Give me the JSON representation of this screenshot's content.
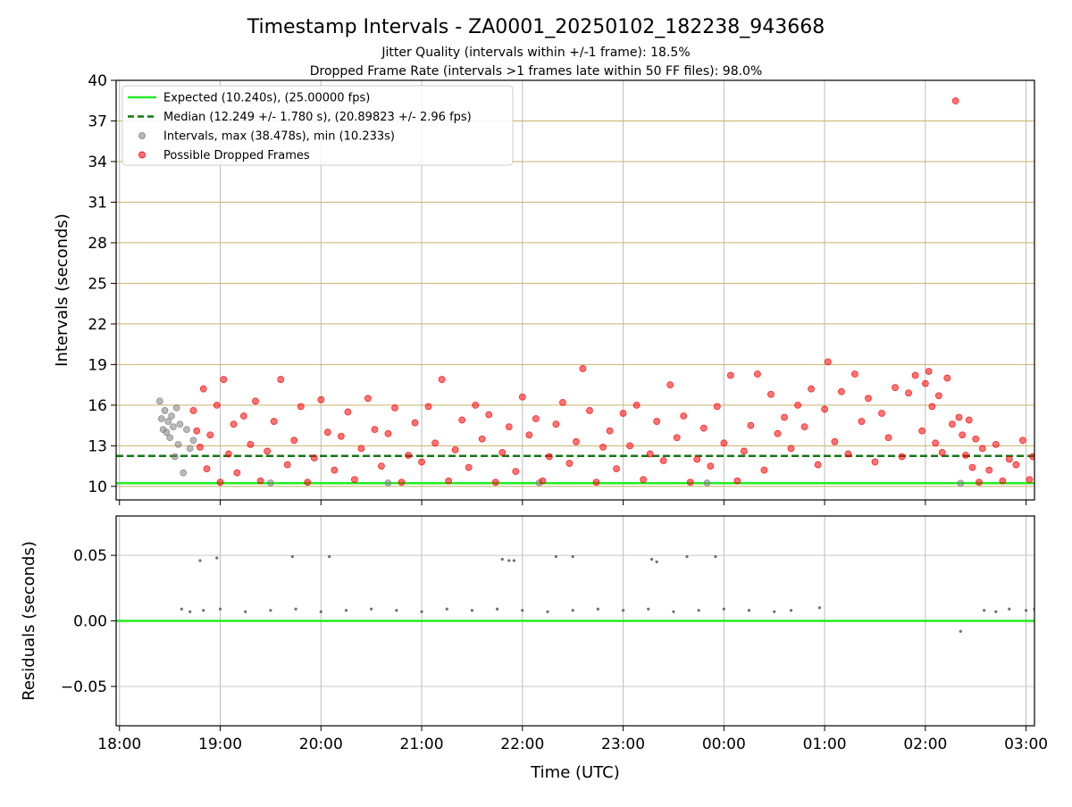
{
  "figure": {
    "title": "Timestamp Intervals - ZA0001_20250102_182238_943668",
    "subtitle_lines": [
      "Jitter Quality (intervals within +/-1 frame): 18.5%",
      "Dropped Frame Rate (intervals >1 frames late within 50 FF files): 98.0%"
    ]
  },
  "chart_data": [
    {
      "type": "scatter",
      "panel": "intervals",
      "xlabel": "",
      "ylabel": "Intervals (seconds)",
      "xlim": [
        "17:58",
        "03:05"
      ],
      "ylim": [
        9,
        40
      ],
      "yticks": [
        10,
        13,
        16,
        19,
        22,
        25,
        28,
        31,
        34,
        37,
        40
      ],
      "grid": true,
      "legend_position": "top-left",
      "reference_lines": [
        {
          "name": "Expected (10.240s), (25.00000 fps)",
          "y": 10.24,
          "color": "#22ee22",
          "style": "solid"
        },
        {
          "name": "Median (12.249 +/- 1.780 s), (20.89823 +/- 2.96 fps)",
          "y": 12.249,
          "color": "#117711",
          "style": "dashed"
        }
      ],
      "series": [
        {
          "name": "Intervals, max (38.478s), min (10.233s)",
          "color": "#808080",
          "points": [
            [
              "18:24",
              16.3
            ],
            [
              "18:25",
              15.0
            ],
            [
              "18:26",
              14.2
            ],
            [
              "18:27",
              15.6
            ],
            [
              "18:28",
              14.0
            ],
            [
              "18:29",
              14.8
            ],
            [
              "18:30",
              13.6
            ],
            [
              "18:31",
              15.2
            ],
            [
              "18:32",
              14.4
            ],
            [
              "18:33",
              12.2
            ],
            [
              "18:34",
              15.8
            ],
            [
              "18:35",
              13.1
            ],
            [
              "18:36",
              14.6
            ],
            [
              "18:38",
              11.0
            ],
            [
              "18:40",
              14.2
            ],
            [
              "18:42",
              12.8
            ],
            [
              "18:44",
              13.4
            ],
            [
              "19:30",
              10.25
            ],
            [
              "20:40",
              10.25
            ],
            [
              "22:10",
              10.26
            ],
            [
              "23:50",
              10.25
            ],
            [
              "02:21",
              10.23
            ]
          ]
        },
        {
          "name": "Possible Dropped Frames",
          "color": "#ff0000",
          "points": [
            [
              "18:44",
              15.6
            ],
            [
              "18:46",
              14.1
            ],
            [
              "18:48",
              12.9
            ],
            [
              "18:50",
              17.2
            ],
            [
              "18:52",
              11.3
            ],
            [
              "18:54",
              13.8
            ],
            [
              "18:58",
              16.0
            ],
            [
              "19:00",
              10.3
            ],
            [
              "19:02",
              17.9
            ],
            [
              "19:05",
              12.4
            ],
            [
              "19:08",
              14.6
            ],
            [
              "19:10",
              11.0
            ],
            [
              "19:14",
              15.2
            ],
            [
              "19:18",
              13.1
            ],
            [
              "19:21",
              16.3
            ],
            [
              "19:24",
              10.4
            ],
            [
              "19:28",
              12.6
            ],
            [
              "19:32",
              14.8
            ],
            [
              "19:36",
              17.9
            ],
            [
              "19:40",
              11.6
            ],
            [
              "19:44",
              13.4
            ],
            [
              "19:48",
              15.9
            ],
            [
              "19:52",
              10.3
            ],
            [
              "19:56",
              12.1
            ],
            [
              "20:00",
              16.4
            ],
            [
              "20:04",
              14.0
            ],
            [
              "20:08",
              11.2
            ],
            [
              "20:12",
              13.7
            ],
            [
              "20:16",
              15.5
            ],
            [
              "20:20",
              10.5
            ],
            [
              "20:24",
              12.8
            ],
            [
              "20:28",
              16.5
            ],
            [
              "20:32",
              14.2
            ],
            [
              "20:36",
              11.5
            ],
            [
              "20:40",
              13.9
            ],
            [
              "20:44",
              15.8
            ],
            [
              "20:48",
              10.3
            ],
            [
              "20:52",
              12.3
            ],
            [
              "20:56",
              14.7
            ],
            [
              "21:00",
              11.8
            ],
            [
              "21:04",
              15.9
            ],
            [
              "21:08",
              13.2
            ],
            [
              "21:12",
              17.9
            ],
            [
              "21:16",
              10.4
            ],
            [
              "21:20",
              12.7
            ],
            [
              "21:24",
              14.9
            ],
            [
              "21:28",
              11.4
            ],
            [
              "21:32",
              16.0
            ],
            [
              "21:36",
              13.5
            ],
            [
              "21:40",
              15.3
            ],
            [
              "21:44",
              10.3
            ],
            [
              "21:48",
              12.5
            ],
            [
              "21:52",
              14.4
            ],
            [
              "21:56",
              11.1
            ],
            [
              "22:00",
              16.6
            ],
            [
              "22:04",
              13.8
            ],
            [
              "22:08",
              15.0
            ],
            [
              "22:12",
              10.4
            ],
            [
              "22:16",
              12.2
            ],
            [
              "22:20",
              14.6
            ],
            [
              "22:24",
              16.2
            ],
            [
              "22:28",
              11.7
            ],
            [
              "22:32",
              13.3
            ],
            [
              "22:36",
              18.7
            ],
            [
              "22:40",
              15.6
            ],
            [
              "22:44",
              10.3
            ],
            [
              "22:48",
              12.9
            ],
            [
              "22:52",
              14.1
            ],
            [
              "22:56",
              11.3
            ],
            [
              "23:00",
              15.4
            ],
            [
              "23:04",
              13.0
            ],
            [
              "23:08",
              16.0
            ],
            [
              "23:12",
              10.5
            ],
            [
              "23:16",
              12.4
            ],
            [
              "23:20",
              14.8
            ],
            [
              "23:24",
              11.9
            ],
            [
              "23:28",
              17.5
            ],
            [
              "23:32",
              13.6
            ],
            [
              "23:36",
              15.2
            ],
            [
              "23:40",
              10.3
            ],
            [
              "23:44",
              12.0
            ],
            [
              "23:48",
              14.3
            ],
            [
              "23:52",
              11.5
            ],
            [
              "23:56",
              15.9
            ],
            [
              "00:00",
              13.2
            ],
            [
              "00:04",
              18.2
            ],
            [
              "00:08",
              10.4
            ],
            [
              "00:12",
              12.6
            ],
            [
              "00:16",
              14.5
            ],
            [
              "00:20",
              18.3
            ],
            [
              "00:24",
              11.2
            ],
            [
              "00:28",
              16.8
            ],
            [
              "00:32",
              13.9
            ],
            [
              "00:36",
              15.1
            ],
            [
              "00:40",
              12.8
            ],
            [
              "00:44",
              16.0
            ],
            [
              "00:48",
              14.4
            ],
            [
              "00:52",
              17.2
            ],
            [
              "00:56",
              11.6
            ],
            [
              "01:00",
              15.7
            ],
            [
              "01:02",
              19.2
            ],
            [
              "01:06",
              13.3
            ],
            [
              "01:10",
              17.0
            ],
            [
              "01:14",
              12.4
            ],
            [
              "01:18",
              18.3
            ],
            [
              "01:22",
              14.8
            ],
            [
              "01:26",
              16.5
            ],
            [
              "01:30",
              11.8
            ],
            [
              "01:34",
              15.4
            ],
            [
              "01:38",
              13.6
            ],
            [
              "01:42",
              17.3
            ],
            [
              "01:46",
              12.2
            ],
            [
              "01:50",
              16.9
            ],
            [
              "01:54",
              18.2
            ],
            [
              "01:58",
              14.1
            ],
            [
              "02:00",
              17.6
            ],
            [
              "02:02",
              18.5
            ],
            [
              "02:04",
              15.9
            ],
            [
              "02:06",
              13.2
            ],
            [
              "02:08",
              16.7
            ],
            [
              "02:10",
              12.5
            ],
            [
              "02:13",
              18.0
            ],
            [
              "02:16",
              14.6
            ],
            [
              "02:18",
              38.48
            ],
            [
              "02:20",
              15.1
            ],
            [
              "02:22",
              13.8
            ],
            [
              "02:24",
              12.3
            ],
            [
              "02:26",
              14.9
            ],
            [
              "02:28",
              11.4
            ],
            [
              "02:30",
              13.5
            ],
            [
              "02:32",
              10.3
            ],
            [
              "02:34",
              12.8
            ],
            [
              "02:38",
              11.2
            ],
            [
              "02:42",
              13.1
            ],
            [
              "02:46",
              10.4
            ],
            [
              "02:50",
              12.0
            ],
            [
              "02:54",
              11.6
            ],
            [
              "02:58",
              13.4
            ],
            [
              "03:02",
              10.5
            ],
            [
              "03:04",
              12.2
            ]
          ]
        }
      ]
    },
    {
      "type": "scatter",
      "panel": "residuals",
      "xlabel": "Time (UTC)",
      "ylabel": "Residuals (seconds)",
      "xlim": [
        "17:58",
        "03:05"
      ],
      "ylim": [
        -0.08,
        0.08
      ],
      "yticks": [
        -0.05,
        0.0,
        0.05
      ],
      "ytick_labels": [
        "−0.05",
        "0.00",
        "0.05"
      ],
      "xticks": [
        "18:00",
        "19:00",
        "20:00",
        "21:00",
        "22:00",
        "23:00",
        "00:00",
        "01:00",
        "02:00",
        "03:00"
      ],
      "grid": true,
      "reference_lines": [
        {
          "y": 0.0,
          "color": "#22ee22",
          "style": "solid"
        }
      ],
      "series": [
        {
          "color": "#707070",
          "points": [
            [
              "18:48",
              0.046
            ],
            [
              "18:58",
              0.048
            ],
            [
              "19:43",
              0.049
            ],
            [
              "20:05",
              0.049
            ],
            [
              "21:48",
              0.047
            ],
            [
              "21:52",
              0.046
            ],
            [
              "21:55",
              0.046
            ],
            [
              "22:20",
              0.049
            ],
            [
              "22:30",
              0.049
            ],
            [
              "23:17",
              0.047
            ],
            [
              "23:20",
              0.045
            ],
            [
              "23:38",
              0.049
            ],
            [
              "23:55",
              0.049
            ],
            [
              "18:37",
              0.009
            ],
            [
              "18:42",
              0.007
            ],
            [
              "18:50",
              0.008
            ],
            [
              "19:00",
              0.009
            ],
            [
              "19:15",
              0.007
            ],
            [
              "19:30",
              0.008
            ],
            [
              "19:45",
              0.009
            ],
            [
              "20:00",
              0.007
            ],
            [
              "20:15",
              0.008
            ],
            [
              "20:30",
              0.009
            ],
            [
              "20:45",
              0.008
            ],
            [
              "21:00",
              0.007
            ],
            [
              "21:15",
              0.009
            ],
            [
              "21:30",
              0.008
            ],
            [
              "21:45",
              0.009
            ],
            [
              "22:00",
              0.008
            ],
            [
              "22:15",
              0.007
            ],
            [
              "22:30",
              0.008
            ],
            [
              "22:45",
              0.009
            ],
            [
              "23:00",
              0.008
            ],
            [
              "23:15",
              0.009
            ],
            [
              "23:30",
              0.007
            ],
            [
              "23:45",
              0.008
            ],
            [
              "00:00",
              0.009
            ],
            [
              "00:15",
              0.008
            ],
            [
              "00:30",
              0.007
            ],
            [
              "00:40",
              0.008
            ],
            [
              "00:57",
              0.01
            ],
            [
              "02:21",
              -0.008
            ],
            [
              "02:35",
              0.008
            ],
            [
              "02:42",
              0.007
            ],
            [
              "02:50",
              0.009
            ],
            [
              "03:00",
              0.008
            ],
            [
              "03:05",
              0.009
            ]
          ]
        }
      ]
    }
  ]
}
